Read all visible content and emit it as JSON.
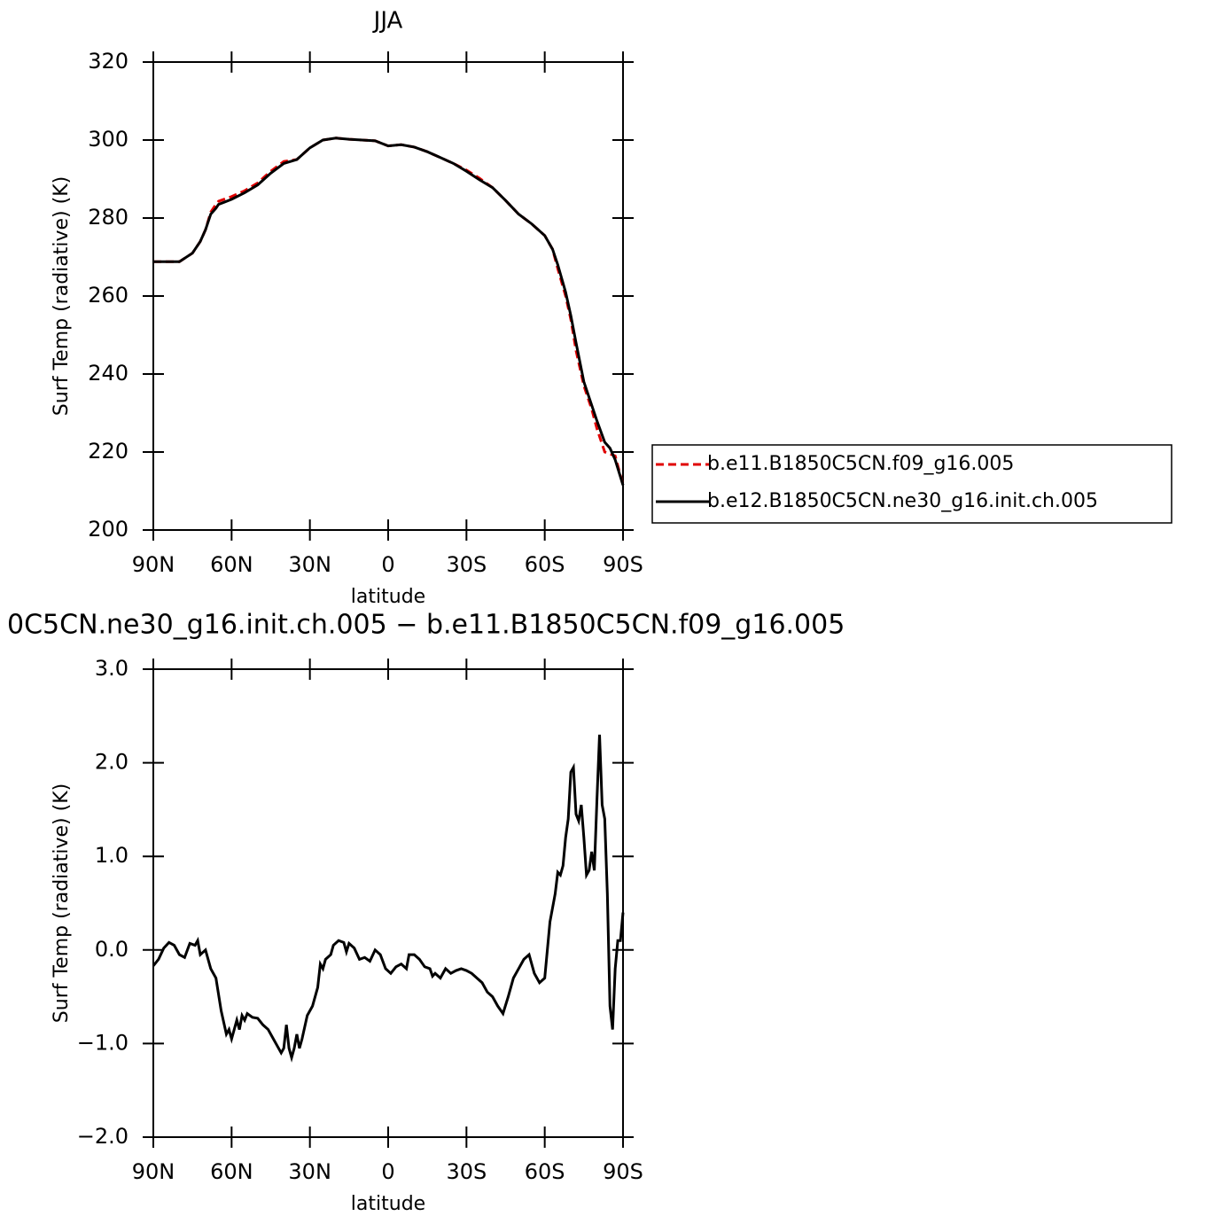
{
  "chart_data": [
    {
      "type": "line",
      "title": "JJA",
      "ylabel": "Surf Temp (radiative) (K)",
      "xlabel": "latitude",
      "xlim": [
        90,
        -90
      ],
      "xticks": [
        {
          "value": 90,
          "label": "90N"
        },
        {
          "value": 60,
          "label": "60N"
        },
        {
          "value": 30,
          "label": "30N"
        },
        0,
        {
          "value": -30,
          "label": "30S"
        },
        {
          "value": -60,
          "label": "60S"
        },
        {
          "value": -90,
          "label": "90S"
        }
      ],
      "ylim": [
        200,
        320
      ],
      "yticks": [
        200,
        220,
        240,
        260,
        280,
        300,
        320
      ],
      "legend": "right",
      "x": [
        90,
        85,
        80,
        75,
        72,
        70,
        68,
        66,
        65,
        60,
        55,
        50,
        45,
        40,
        35,
        30,
        25,
        20,
        15,
        10,
        5,
        0,
        -5,
        -10,
        -15,
        -20,
        -25,
        -30,
        -35,
        -40,
        -45,
        -50,
        -55,
        -60,
        -63,
        -65,
        -68,
        -70,
        -72,
        -75,
        -78,
        -80,
        -83,
        -85,
        -87,
        -90
      ],
      "series": [
        {
          "name": "b.e11.B1850C5CN.f09_g16.005",
          "color": "#e00000",
          "line_style": "dashed",
          "values": [
            268.8,
            268.8,
            268.8,
            271,
            274,
            277,
            281.5,
            283.5,
            284.3,
            285.5,
            287,
            289,
            292,
            294.5,
            295,
            298,
            300,
            300.5,
            300.2,
            300,
            299.8,
            298.5,
            298.8,
            298.2,
            297,
            295.5,
            294,
            292.3,
            290.2,
            287.8,
            284.5,
            281,
            278.5,
            275.5,
            272,
            267,
            260,
            254,
            246,
            237,
            231,
            226,
            220,
            219.5,
            219,
            211.5
          ]
        },
        {
          "name": "b.e12.B1850C5CN.ne30_g16.init.ch.005",
          "color": "#000000",
          "line_style": "solid",
          "values": [
            268.8,
            268.8,
            268.8,
            271,
            274,
            277,
            281,
            282.5,
            283.5,
            284.8,
            286.5,
            288.5,
            291.5,
            294,
            295,
            298,
            300,
            300.5,
            300.2,
            300,
            299.8,
            298.5,
            298.8,
            298.2,
            297,
            295.5,
            294,
            292,
            289.8,
            287.8,
            284.5,
            281,
            278.5,
            275.5,
            272,
            268,
            261,
            255,
            248,
            238,
            232,
            228,
            222.5,
            221,
            218,
            211.5
          ]
        }
      ]
    },
    {
      "type": "line",
      "title": "0C5CN.ne30_g16.init.ch.005 − b.e11.B1850C5CN.f09_g16.005",
      "ylabel": "Surf Temp (radiative) (K)",
      "xlabel": "latitude",
      "xlim": [
        90,
        -90
      ],
      "xticks": [
        {
          "value": 90,
          "label": "90N"
        },
        {
          "value": 60,
          "label": "60N"
        },
        {
          "value": 30,
          "label": "30N"
        },
        0,
        {
          "value": -30,
          "label": "30S"
        },
        {
          "value": -60,
          "label": "60S"
        },
        {
          "value": -90,
          "label": "90S"
        }
      ],
      "ylim": [
        -2,
        3
      ],
      "yticks": [
        {
          "value": -2,
          "label": "−2.0"
        },
        {
          "value": -1,
          "label": "−1.0"
        },
        {
          "value": 0,
          "label": "0.0"
        },
        {
          "value": 1,
          "label": "1.0"
        },
        {
          "value": 2,
          "label": "2.0"
        },
        {
          "value": 3,
          "label": "3.0"
        }
      ],
      "x": [
        90,
        88,
        86,
        84,
        82,
        80,
        78,
        76,
        74,
        73,
        72,
        70,
        68,
        66,
        64,
        62,
        61,
        60,
        58,
        57,
        56,
        55,
        54,
        52,
        50,
        48,
        46,
        44,
        42,
        41,
        40,
        39,
        38,
        37,
        36,
        35,
        34,
        33,
        31,
        29,
        27,
        26,
        25,
        24,
        22,
        21,
        19,
        17,
        16,
        15,
        13,
        11,
        9,
        7,
        5,
        3,
        1,
        -1,
        -3,
        -5,
        -7,
        -8,
        -10,
        -12,
        -14,
        -16,
        -17,
        -18,
        -20,
        -22,
        -24,
        -26,
        -28,
        -30,
        -32,
        -34,
        -36,
        -38,
        -40,
        -42,
        -44,
        -46,
        -48,
        -50,
        -52,
        -54,
        -56,
        -58,
        -60,
        -62,
        -64,
        -65,
        -66,
        -67,
        -68,
        -69,
        -70,
        -71,
        -72,
        -73,
        -74,
        -75,
        -76,
        -77,
        -78,
        -79,
        -80,
        -81,
        -82,
        -83,
        -84,
        -85,
        -86,
        -87,
        -88,
        -89,
        -90
      ],
      "series": [
        {
          "color": "#000000",
          "line_style": "solid",
          "values": [
            -0.17,
            -0.1,
            0.02,
            0.08,
            0.05,
            -0.05,
            -0.08,
            0.07,
            0.05,
            0.1,
            -0.05,
            0,
            -0.2,
            -0.3,
            -0.65,
            -0.9,
            -0.85,
            -0.95,
            -0.75,
            -0.85,
            -0.7,
            -0.75,
            -0.68,
            -0.72,
            -0.73,
            -0.8,
            -0.85,
            -0.95,
            -1.05,
            -1.1,
            -1.05,
            -0.8,
            -1.05,
            -1.15,
            -1.05,
            -0.9,
            -1.05,
            -0.95,
            -0.7,
            -0.6,
            -0.4,
            -0.15,
            -0.2,
            -0.1,
            -0.05,
            0.05,
            0.1,
            0.08,
            -0.02,
            0.07,
            0.02,
            -0.1,
            -0.08,
            -0.12,
            0,
            -0.05,
            -0.2,
            -0.25,
            -0.18,
            -0.15,
            -0.2,
            -0.05,
            -0.05,
            -0.1,
            -0.18,
            -0.2,
            -0.28,
            -0.25,
            -0.3,
            -0.2,
            -0.25,
            -0.22,
            -0.2,
            -0.22,
            -0.25,
            -0.3,
            -0.35,
            -0.45,
            -0.5,
            -0.6,
            -0.68,
            -0.5,
            -0.3,
            -0.2,
            -0.1,
            -0.05,
            -0.25,
            -0.35,
            -0.3,
            0.3,
            0.6,
            0.83,
            0.8,
            0.9,
            1.2,
            1.4,
            1.9,
            1.95,
            1.45,
            1.38,
            1.55,
            1.2,
            0.8,
            0.85,
            1.05,
            0.85,
            1.6,
            2.3,
            1.55,
            1.4,
            0.6,
            -0.6,
            -0.85,
            -0.2,
            0.1,
            0.1,
            0.4
          ]
        }
      ]
    }
  ]
}
